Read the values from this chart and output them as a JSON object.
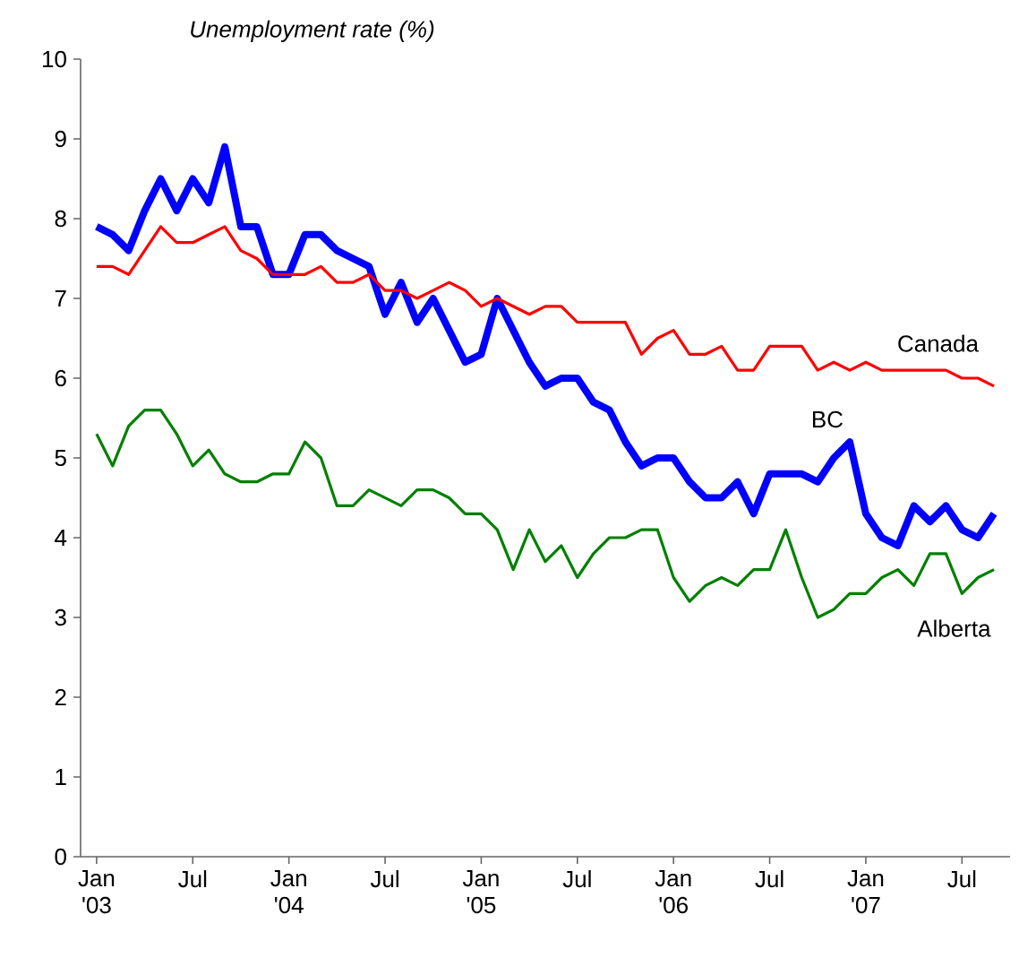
{
  "chart_data": {
    "type": "line",
    "title": "Unemployment rate (%)",
    "x": [
      "2003-01",
      "2003-02",
      "2003-03",
      "2003-04",
      "2003-05",
      "2003-06",
      "2003-07",
      "2003-08",
      "2003-09",
      "2003-10",
      "2003-11",
      "2003-12",
      "2004-01",
      "2004-02",
      "2004-03",
      "2004-04",
      "2004-05",
      "2004-06",
      "2004-07",
      "2004-08",
      "2004-09",
      "2004-10",
      "2004-11",
      "2004-12",
      "2005-01",
      "2005-02",
      "2005-03",
      "2005-04",
      "2005-05",
      "2005-06",
      "2005-07",
      "2005-08",
      "2005-09",
      "2005-10",
      "2005-11",
      "2005-12",
      "2006-01",
      "2006-02",
      "2006-03",
      "2006-04",
      "2006-05",
      "2006-06",
      "2006-07",
      "2006-08",
      "2006-09",
      "2006-10",
      "2006-11",
      "2006-12",
      "2007-01",
      "2007-02",
      "2007-03",
      "2007-04",
      "2007-05",
      "2007-06",
      "2007-07",
      "2007-08",
      "2007-09"
    ],
    "series": [
      {
        "name": "BC",
        "color": "#0000ff",
        "values": [
          7.9,
          7.8,
          7.6,
          8.1,
          8.5,
          8.1,
          8.5,
          8.2,
          8.9,
          7.9,
          7.9,
          7.3,
          7.3,
          7.8,
          7.8,
          7.6,
          7.5,
          7.4,
          6.8,
          7.2,
          6.7,
          7.0,
          6.6,
          6.2,
          6.3,
          7.0,
          6.6,
          6.2,
          5.9,
          6.0,
          6.0,
          5.7,
          5.6,
          5.2,
          4.9,
          5.0,
          5.0,
          4.7,
          4.5,
          4.5,
          4.7,
          4.3,
          4.8,
          4.8,
          4.8,
          4.7,
          5.0,
          5.2,
          4.3,
          4.0,
          3.9,
          4.4,
          4.2,
          4.4,
          4.1,
          4.0,
          4.3
        ]
      },
      {
        "name": "Canada",
        "color": "#ff0000",
        "values": [
          7.4,
          7.4,
          7.3,
          7.6,
          7.9,
          7.7,
          7.7,
          7.8,
          7.9,
          7.6,
          7.5,
          7.3,
          7.3,
          7.3,
          7.4,
          7.2,
          7.2,
          7.3,
          7.1,
          7.1,
          7.0,
          7.1,
          7.2,
          7.1,
          6.9,
          7.0,
          6.9,
          6.8,
          6.9,
          6.9,
          6.7,
          6.7,
          6.7,
          6.7,
          6.3,
          6.5,
          6.6,
          6.3,
          6.3,
          6.4,
          6.1,
          6.1,
          6.4,
          6.4,
          6.4,
          6.1,
          6.2,
          6.1,
          6.2,
          6.1,
          6.1,
          6.1,
          6.1,
          6.1,
          6.0,
          6.0,
          5.9
        ]
      },
      {
        "name": "Alberta",
        "color": "#008000",
        "values": [
          5.3,
          4.9,
          5.4,
          5.6,
          5.6,
          5.3,
          4.9,
          5.1,
          4.8,
          4.7,
          4.7,
          4.8,
          4.8,
          5.2,
          5.0,
          4.4,
          4.4,
          4.6,
          4.5,
          4.4,
          4.6,
          4.6,
          4.5,
          4.3,
          4.3,
          4.1,
          3.6,
          4.1,
          3.7,
          3.9,
          3.5,
          3.8,
          4.0,
          4.0,
          4.1,
          4.1,
          3.5,
          3.2,
          3.4,
          3.5,
          3.4,
          3.6,
          3.6,
          4.1,
          3.5,
          3.0,
          3.1,
          3.3,
          3.3,
          3.5,
          3.6,
          3.4,
          3.8,
          3.8,
          3.3,
          3.5,
          3.6
        ]
      }
    ],
    "xlim": [
      "2002-12",
      "2007-10"
    ],
    "xticks": [
      {
        "value": "2003-01",
        "label": "Jan '03"
      },
      {
        "value": "2003-07",
        "label": "Jul"
      },
      {
        "value": "2004-01",
        "label": "Jan '04"
      },
      {
        "value": "2004-07",
        "label": "Jul"
      },
      {
        "value": "2005-01",
        "label": "Jan '05"
      },
      {
        "value": "2005-07",
        "label": "Jul"
      },
      {
        "value": "2006-01",
        "label": "Jan '06"
      },
      {
        "value": "2006-07",
        "label": "Jul"
      },
      {
        "value": "2007-01",
        "label": "Jan '07"
      },
      {
        "value": "2007-07",
        "label": "Jul"
      }
    ],
    "ylim": [
      0,
      10
    ],
    "yticks": [
      0,
      1,
      2,
      3,
      4,
      5,
      6,
      7,
      8,
      9,
      10
    ]
  }
}
